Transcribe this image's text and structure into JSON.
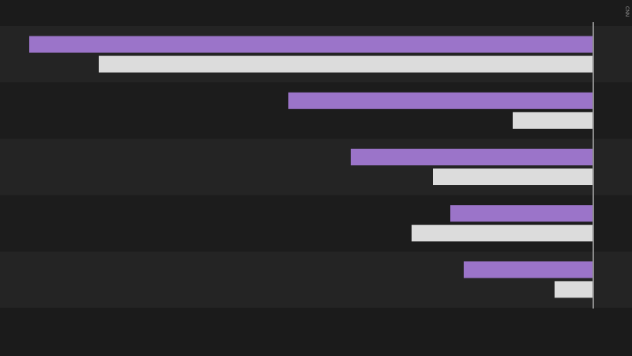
{
  "chart_data": {
    "type": "bar",
    "orientation": "horizontal",
    "x_reversed": true,
    "watermark": "CNN",
    "categories": [
      null,
      null,
      null,
      null,
      null
    ],
    "series": [
      {
        "color": "#9b74c9",
        "values": [
          714,
          386,
          307,
          181,
          164
        ]
      },
      {
        "color": "#dcdcdc",
        "values": [
          626,
          102,
          203,
          230,
          49
        ]
      }
    ],
    "xlim": [
      0,
      751
    ]
  }
}
